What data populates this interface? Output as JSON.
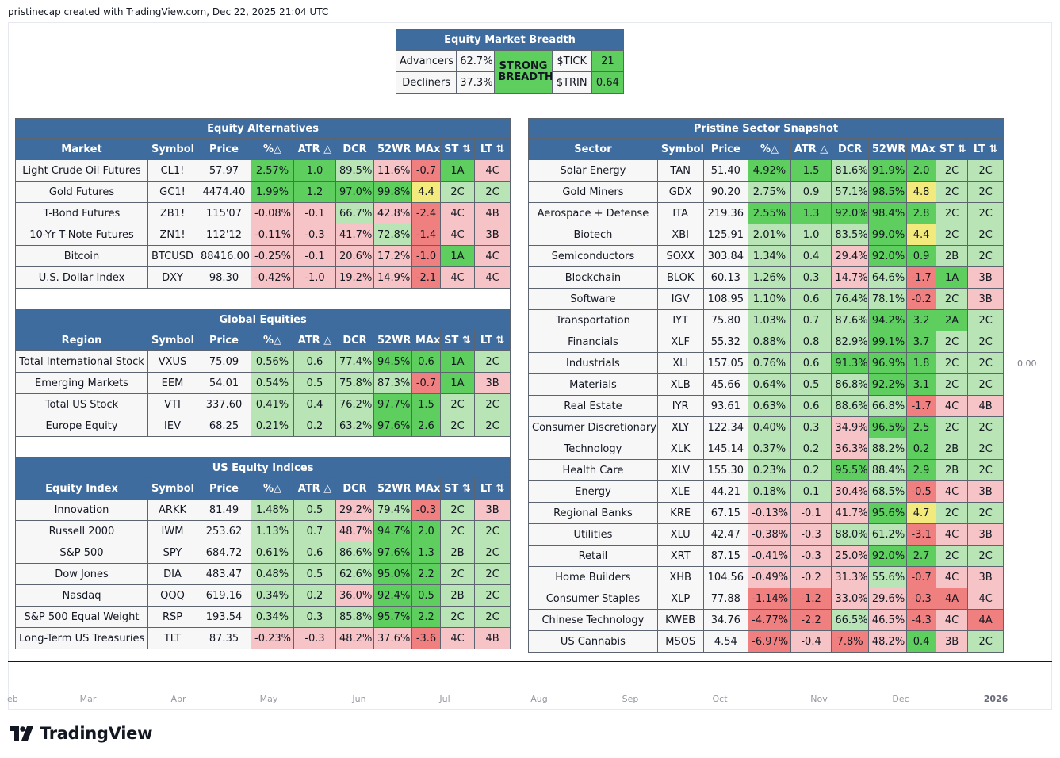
{
  "credit": "pristinecap created with TradingView.com, Dec 22, 2025 21:04 UTC",
  "axis": {
    "months": [
      "eb",
      "Mar",
      "Apr",
      "May",
      "Jun",
      "Jul",
      "Aug",
      "Sep",
      "Oct",
      "Nov",
      "Dec",
      "2026"
    ],
    "y_value": "0.00"
  },
  "brand": "TradingView",
  "breadth": {
    "title": "Equity Market Breadth",
    "adv_label": "Advancers",
    "adv_value": "62.7%",
    "dec_label": "Decliners",
    "dec_value": "37.3%",
    "status": "STRONG BREADTH",
    "tick_label": "$TICK",
    "tick_value": "21",
    "trin_label": "$TRIN",
    "trin_value": "0.64"
  },
  "headers": [
    "Symbol",
    "Price",
    "%△",
    "ATR △",
    "DCR",
    "52WR",
    "MAx",
    "ST ⇅",
    "LT ⇅"
  ],
  "colors": {
    "dg": "#5ecf5e",
    "lg": "#b9e4b6",
    "dr": "#f08080",
    "lr": "#f6c4c6",
    "y": "#f2ea7c",
    "w": "#f7f7f7",
    "header": "#3f6c9e"
  },
  "sections": [
    {
      "title": "Equity Alternatives",
      "first_col": "Market",
      "rows": [
        {
          "c": [
            "Light Crude Oil Futures",
            "CL1!",
            "57.97",
            "2.57%",
            "1.0",
            "89.5%",
            "11.6%",
            "-0.7",
            "1A",
            "4C"
          ],
          "k": [
            "w",
            "w",
            "w",
            "dg",
            "dg",
            "lg",
            "lr",
            "dr",
            "dg",
            "lr"
          ]
        },
        {
          "c": [
            "Gold Futures",
            "GC1!",
            "4474.40",
            "1.99%",
            "1.2",
            "97.0%",
            "99.8%",
            "4.4",
            "2C",
            "2C"
          ],
          "k": [
            "w",
            "w",
            "w",
            "dg",
            "dg",
            "dg",
            "dg",
            "y",
            "lg",
            "lg"
          ]
        },
        {
          "c": [
            "T-Bond Futures",
            "ZB1!",
            "115'07",
            "-0.08%",
            "-0.1",
            "66.7%",
            "42.8%",
            "-2.4",
            "4C",
            "4B"
          ],
          "k": [
            "w",
            "w",
            "w",
            "lr",
            "lr",
            "lg",
            "lr",
            "dr",
            "lr",
            "lr"
          ]
        },
        {
          "c": [
            "10-Yr T-Note Futures",
            "ZN1!",
            "112'12",
            "-0.11%",
            "-0.3",
            "41.7%",
            "72.8%",
            "-1.4",
            "4C",
            "3B"
          ],
          "k": [
            "w",
            "w",
            "w",
            "lr",
            "lr",
            "lr",
            "lg",
            "dr",
            "lr",
            "lr"
          ]
        },
        {
          "c": [
            "Bitcoin",
            "BTCUSD",
            "88416.00",
            "-0.25%",
            "-0.1",
            "20.6%",
            "17.2%",
            "-1.0",
            "1A",
            "4C"
          ],
          "k": [
            "w",
            "w",
            "w",
            "lr",
            "lr",
            "lr",
            "lr",
            "dr",
            "dg",
            "lr"
          ]
        },
        {
          "c": [
            "U.S. Dollar Index",
            "DXY",
            "98.30",
            "-0.42%",
            "-1.0",
            "19.2%",
            "14.9%",
            "-2.1",
            "4C",
            "4C"
          ],
          "k": [
            "w",
            "w",
            "w",
            "lr",
            "lr",
            "lr",
            "lr",
            "dr",
            "lr",
            "lr"
          ]
        }
      ]
    },
    {
      "title": "Global Equities",
      "first_col": "Region",
      "rows": [
        {
          "c": [
            "Total International Stock",
            "VXUS",
            "75.09",
            "0.56%",
            "0.6",
            "77.4%",
            "94.5%",
            "0.6",
            "1A",
            "2C"
          ],
          "k": [
            "w",
            "w",
            "w",
            "lg",
            "lg",
            "lg",
            "dg",
            "dg",
            "dg",
            "lg"
          ]
        },
        {
          "c": [
            "Emerging Markets",
            "EEM",
            "54.01",
            "0.54%",
            "0.5",
            "75.8%",
            "87.3%",
            "-0.7",
            "1A",
            "3B"
          ],
          "k": [
            "w",
            "w",
            "w",
            "lg",
            "lg",
            "lg",
            "lg",
            "dr",
            "dg",
            "lr"
          ]
        },
        {
          "c": [
            "Total US Stock",
            "VTI",
            "337.60",
            "0.41%",
            "0.4",
            "76.2%",
            "97.7%",
            "1.5",
            "2C",
            "2C"
          ],
          "k": [
            "w",
            "w",
            "w",
            "lg",
            "lg",
            "lg",
            "dg",
            "dg",
            "lg",
            "lg"
          ]
        },
        {
          "c": [
            "Europe Equity",
            "IEV",
            "68.25",
            "0.21%",
            "0.2",
            "63.2%",
            "97.6%",
            "2.6",
            "2C",
            "2C"
          ],
          "k": [
            "w",
            "w",
            "w",
            "lg",
            "lg",
            "lg",
            "dg",
            "dg",
            "lg",
            "lg"
          ]
        }
      ]
    },
    {
      "title": "US Equity Indices",
      "first_col": "Equity Index",
      "rows": [
        {
          "c": [
            "Innovation",
            "ARKK",
            "81.49",
            "1.48%",
            "0.5",
            "29.2%",
            "79.4%",
            "-0.3",
            "2C",
            "3B"
          ],
          "k": [
            "w",
            "w",
            "w",
            "lg",
            "lg",
            "lr",
            "lg",
            "dr",
            "lg",
            "lr"
          ]
        },
        {
          "c": [
            "Russell 2000",
            "IWM",
            "253.62",
            "1.13%",
            "0.7",
            "48.7%",
            "94.7%",
            "2.0",
            "2C",
            "2C"
          ],
          "k": [
            "w",
            "w",
            "w",
            "lg",
            "lg",
            "lr",
            "dg",
            "dg",
            "lg",
            "lg"
          ]
        },
        {
          "c": [
            "S&P 500",
            "SPY",
            "684.72",
            "0.61%",
            "0.6",
            "86.6%",
            "97.6%",
            "1.3",
            "2B",
            "2C"
          ],
          "k": [
            "w",
            "w",
            "w",
            "lg",
            "lg",
            "lg",
            "dg",
            "dg",
            "lg",
            "lg"
          ]
        },
        {
          "c": [
            "Dow Jones",
            "DIA",
            "483.47",
            "0.48%",
            "0.5",
            "62.6%",
            "95.0%",
            "2.2",
            "2C",
            "2C"
          ],
          "k": [
            "w",
            "w",
            "w",
            "lg",
            "lg",
            "lg",
            "dg",
            "dg",
            "lg",
            "lg"
          ]
        },
        {
          "c": [
            "Nasdaq",
            "QQQ",
            "619.16",
            "0.34%",
            "0.2",
            "36.0%",
            "92.4%",
            "0.5",
            "2B",
            "2C"
          ],
          "k": [
            "w",
            "w",
            "w",
            "lg",
            "lg",
            "lr",
            "dg",
            "dg",
            "lg",
            "lg"
          ]
        },
        {
          "c": [
            "S&P 500 Equal Weight",
            "RSP",
            "193.54",
            "0.34%",
            "0.3",
            "85.8%",
            "95.7%",
            "2.2",
            "2C",
            "2C"
          ],
          "k": [
            "w",
            "w",
            "w",
            "lg",
            "lg",
            "lg",
            "dg",
            "dg",
            "lg",
            "lg"
          ]
        },
        {
          "c": [
            "Long-Term US Treasuries",
            "TLT",
            "87.35",
            "-0.23%",
            "-0.3",
            "48.2%",
            "37.6%",
            "-3.6",
            "4C",
            "4B"
          ],
          "k": [
            "w",
            "w",
            "w",
            "lr",
            "lr",
            "lr",
            "lr",
            "dr",
            "lr",
            "lr"
          ]
        }
      ]
    }
  ],
  "sector": {
    "title": "Pristine Sector Snapshot",
    "first_col": "Sector",
    "rows": [
      {
        "c": [
          "Solar Energy",
          "TAN",
          "51.40",
          "4.92%",
          "1.5",
          "81.6%",
          "91.9%",
          "2.0",
          "2C",
          "2C"
        ],
        "k": [
          "w",
          "w",
          "w",
          "dg",
          "dg",
          "lg",
          "dg",
          "dg",
          "lg",
          "lg"
        ]
      },
      {
        "c": [
          "Gold Miners",
          "GDX",
          "90.20",
          "2.75%",
          "0.9",
          "57.1%",
          "98.5%",
          "4.8",
          "2C",
          "2C"
        ],
        "k": [
          "w",
          "w",
          "w",
          "lg",
          "lg",
          "lg",
          "dg",
          "y",
          "lg",
          "lg"
        ]
      },
      {
        "c": [
          "Aerospace + Defense",
          "ITA",
          "219.36",
          "2.55%",
          "1.3",
          "92.0%",
          "98.4%",
          "2.8",
          "2C",
          "2C"
        ],
        "k": [
          "w",
          "w",
          "w",
          "dg",
          "dg",
          "dg",
          "dg",
          "dg",
          "lg",
          "lg"
        ]
      },
      {
        "c": [
          "Biotech",
          "XBI",
          "125.91",
          "2.01%",
          "1.0",
          "83.5%",
          "99.0%",
          "4.4",
          "2C",
          "2C"
        ],
        "k": [
          "w",
          "w",
          "w",
          "lg",
          "lg",
          "lg",
          "dg",
          "y",
          "lg",
          "lg"
        ]
      },
      {
        "c": [
          "Semiconductors",
          "SOXX",
          "303.84",
          "1.34%",
          "0.4",
          "29.4%",
          "92.0%",
          "0.9",
          "2B",
          "2C"
        ],
        "k": [
          "w",
          "w",
          "w",
          "lg",
          "lg",
          "lr",
          "dg",
          "dg",
          "lg",
          "lg"
        ]
      },
      {
        "c": [
          "Blockchain",
          "BLOK",
          "60.13",
          "1.26%",
          "0.3",
          "14.7%",
          "64.6%",
          "-1.7",
          "1A",
          "3B"
        ],
        "k": [
          "w",
          "w",
          "w",
          "lg",
          "lg",
          "lr",
          "lg",
          "dr",
          "dg",
          "lr"
        ]
      },
      {
        "c": [
          "Software",
          "IGV",
          "108.95",
          "1.10%",
          "0.6",
          "76.4%",
          "78.1%",
          "-0.2",
          "2C",
          "3B"
        ],
        "k": [
          "w",
          "w",
          "w",
          "lg",
          "lg",
          "lg",
          "lg",
          "dr",
          "lg",
          "lr"
        ]
      },
      {
        "c": [
          "Transportation",
          "IYT",
          "75.80",
          "1.03%",
          "0.7",
          "87.6%",
          "94.2%",
          "3.2",
          "2A",
          "2C"
        ],
        "k": [
          "w",
          "w",
          "w",
          "lg",
          "lg",
          "lg",
          "dg",
          "dg",
          "dg",
          "lg"
        ]
      },
      {
        "c": [
          "Financials",
          "XLF",
          "55.32",
          "0.88%",
          "0.8",
          "82.9%",
          "99.1%",
          "3.7",
          "2C",
          "2C"
        ],
        "k": [
          "w",
          "w",
          "w",
          "lg",
          "lg",
          "lg",
          "dg",
          "dg",
          "lg",
          "lg"
        ]
      },
      {
        "c": [
          "Industrials",
          "XLI",
          "157.05",
          "0.76%",
          "0.6",
          "91.3%",
          "96.9%",
          "1.8",
          "2C",
          "2C"
        ],
        "k": [
          "w",
          "w",
          "w",
          "lg",
          "lg",
          "dg",
          "dg",
          "dg",
          "lg",
          "lg"
        ]
      },
      {
        "c": [
          "Materials",
          "XLB",
          "45.66",
          "0.64%",
          "0.5",
          "86.8%",
          "92.2%",
          "3.1",
          "2C",
          "2C"
        ],
        "k": [
          "w",
          "w",
          "w",
          "lg",
          "lg",
          "lg",
          "dg",
          "dg",
          "lg",
          "lg"
        ]
      },
      {
        "c": [
          "Real Estate",
          "IYR",
          "93.61",
          "0.63%",
          "0.6",
          "88.6%",
          "66.8%",
          "-1.7",
          "4C",
          "4B"
        ],
        "k": [
          "w",
          "w",
          "w",
          "lg",
          "lg",
          "lg",
          "lg",
          "dr",
          "lr",
          "lr"
        ]
      },
      {
        "c": [
          "Consumer Discretionary",
          "XLY",
          "122.34",
          "0.40%",
          "0.3",
          "34.9%",
          "96.5%",
          "2.5",
          "2C",
          "2C"
        ],
        "k": [
          "w",
          "w",
          "w",
          "lg",
          "lg",
          "lr",
          "dg",
          "dg",
          "lg",
          "lg"
        ]
      },
      {
        "c": [
          "Technology",
          "XLK",
          "145.14",
          "0.37%",
          "0.2",
          "36.3%",
          "88.2%",
          "0.2",
          "2B",
          "2C"
        ],
        "k": [
          "w",
          "w",
          "w",
          "lg",
          "lg",
          "lr",
          "lg",
          "dg",
          "lg",
          "lg"
        ]
      },
      {
        "c": [
          "Health Care",
          "XLV",
          "155.30",
          "0.23%",
          "0.2",
          "95.5%",
          "88.4%",
          "2.9",
          "2B",
          "2C"
        ],
        "k": [
          "w",
          "w",
          "w",
          "lg",
          "lg",
          "dg",
          "lg",
          "dg",
          "lg",
          "lg"
        ]
      },
      {
        "c": [
          "Energy",
          "XLE",
          "44.21",
          "0.18%",
          "0.1",
          "30.4%",
          "68.5%",
          "-0.5",
          "4C",
          "3B"
        ],
        "k": [
          "w",
          "w",
          "w",
          "lg",
          "lg",
          "lr",
          "lg",
          "dr",
          "lr",
          "lr"
        ]
      },
      {
        "c": [
          "Regional Banks",
          "KRE",
          "67.15",
          "-0.13%",
          "-0.1",
          "41.7%",
          "95.6%",
          "4.7",
          "2C",
          "2C"
        ],
        "k": [
          "w",
          "w",
          "w",
          "lr",
          "lr",
          "lr",
          "dg",
          "y",
          "lg",
          "lg"
        ]
      },
      {
        "c": [
          "Utilities",
          "XLU",
          "42.47",
          "-0.38%",
          "-0.3",
          "88.0%",
          "61.2%",
          "-3.1",
          "4C",
          "3B"
        ],
        "k": [
          "w",
          "w",
          "w",
          "lr",
          "lr",
          "lg",
          "lg",
          "dr",
          "lr",
          "lr"
        ]
      },
      {
        "c": [
          "Retail",
          "XRT",
          "87.15",
          "-0.41%",
          "-0.3",
          "25.0%",
          "92.0%",
          "2.7",
          "2C",
          "2C"
        ],
        "k": [
          "w",
          "w",
          "w",
          "lr",
          "lr",
          "lr",
          "dg",
          "dg",
          "lg",
          "lg"
        ]
      },
      {
        "c": [
          "Home Builders",
          "XHB",
          "104.56",
          "-0.49%",
          "-0.2",
          "31.3%",
          "55.6%",
          "-0.7",
          "4C",
          "3B"
        ],
        "k": [
          "w",
          "w",
          "w",
          "lr",
          "lr",
          "lr",
          "lg",
          "dr",
          "lr",
          "lr"
        ]
      },
      {
        "c": [
          "Consumer Staples",
          "XLP",
          "77.88",
          "-1.14%",
          "-1.2",
          "33.0%",
          "29.6%",
          "-0.3",
          "4A",
          "4C"
        ],
        "k": [
          "w",
          "w",
          "w",
          "dr",
          "dr",
          "lr",
          "lr",
          "dr",
          "dr",
          "lr"
        ]
      },
      {
        "c": [
          "Chinese Technology",
          "KWEB",
          "34.76",
          "-4.77%",
          "-2.2",
          "66.5%",
          "46.5%",
          "-4.3",
          "4C",
          "4A"
        ],
        "k": [
          "w",
          "w",
          "w",
          "dr",
          "dr",
          "lg",
          "lr",
          "dr",
          "lr",
          "dr"
        ]
      },
      {
        "c": [
          "US Cannabis",
          "MSOS",
          "4.54",
          "-6.97%",
          "-0.4",
          "7.8%",
          "48.2%",
          "0.4",
          "3B",
          "2C"
        ],
        "k": [
          "w",
          "w",
          "w",
          "dr",
          "lr",
          "dr",
          "lr",
          "dg",
          "lr",
          "lg"
        ]
      }
    ]
  }
}
